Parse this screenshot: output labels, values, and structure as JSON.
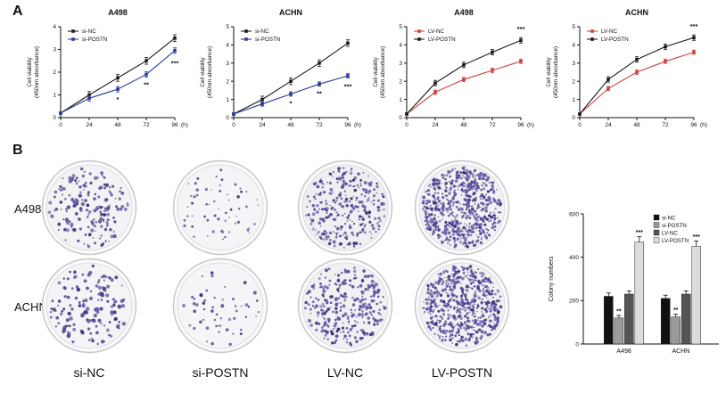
{
  "figure": {
    "panel_a": "A",
    "panel_b": "B"
  },
  "colony": {
    "row_labels": [
      "A498",
      "ACHN"
    ],
    "col_labels": [
      "si-NC",
      "si-POSTN",
      "LV-NC",
      "LV-POSTN"
    ],
    "dot_colors": [
      "#4a3c8e",
      "#5b4da0",
      "#3a2f78",
      "#6c5fae"
    ],
    "dishes": [
      {
        "row": "A498",
        "col": "si-NC",
        "dot_count": 175,
        "dot_size": [
          0.9,
          2.2
        ],
        "bg": "#f3f2f4",
        "seed": 11
      },
      {
        "row": "A498",
        "col": "si-POSTN",
        "dot_count": 60,
        "dot_size": [
          0.7,
          1.8
        ],
        "bg": "#f5f4f6",
        "seed": 22
      },
      {
        "row": "A498",
        "col": "LV-NC",
        "dot_count": 300,
        "dot_size": [
          0.7,
          1.9
        ],
        "bg": "#efeef1",
        "seed": 33
      },
      {
        "row": "A498",
        "col": "LV-POSTN",
        "dot_count": 650,
        "dot_size": [
          0.7,
          1.9
        ],
        "bg": "#f2f1f3",
        "seed": 44
      },
      {
        "row": "ACHN",
        "col": "si-NC",
        "dot_count": 150,
        "dot_size": [
          1.0,
          2.4
        ],
        "bg": "#f4f3f5",
        "seed": 55
      },
      {
        "row": "ACHN",
        "col": "si-POSTN",
        "dot_count": 55,
        "dot_size": [
          0.8,
          2.0
        ],
        "bg": "#f5f4f6",
        "seed": 66
      },
      {
        "row": "ACHN",
        "col": "LV-NC",
        "dot_count": 285,
        "dot_size": [
          0.8,
          2.0
        ],
        "bg": "#f1f0f3",
        "seed": 77
      },
      {
        "row": "ACHN",
        "col": "LV-POSTN",
        "dot_count": 600,
        "dot_size": [
          0.7,
          1.9
        ],
        "bg": "#f2f1f3",
        "seed": 88
      }
    ]
  },
  "chart_data": [
    {
      "type": "line",
      "title": "A498",
      "xlabel": "(h)",
      "ylabel_lines": [
        "Cell viability",
        "(450nm absorbance)"
      ],
      "x": [
        0,
        24,
        48,
        72,
        96
      ],
      "ylim": [
        0,
        4
      ],
      "yticks": [
        0,
        1,
        2,
        3,
        4
      ],
      "series": [
        {
          "name": "si-NC",
          "color": "#1a1a1a",
          "values": [
            0.2,
            1.0,
            1.75,
            2.5,
            3.5
          ],
          "err": 0.15
        },
        {
          "name": "si-POSTN",
          "color": "#2d3aa0",
          "values": [
            0.2,
            0.85,
            1.25,
            1.9,
            2.95
          ],
          "err": 0.12
        }
      ],
      "annotations": [
        {
          "x": 48,
          "y": 0.7,
          "label": "*"
        },
        {
          "x": 72,
          "y": 1.35,
          "label": "**"
        },
        {
          "x": 96,
          "y": 2.3,
          "label": "***"
        }
      ]
    },
    {
      "type": "line",
      "title": "ACHN",
      "xlabel": "(h)",
      "ylabel_lines": [
        "Cell viability",
        "(450nm absorbance)"
      ],
      "x": [
        0,
        24,
        48,
        72,
        96
      ],
      "ylim": [
        0,
        5
      ],
      "yticks": [
        0,
        1,
        2,
        3,
        4,
        5
      ],
      "series": [
        {
          "name": "si-NC",
          "color": "#1a1a1a",
          "values": [
            0.2,
            1.0,
            2.0,
            3.0,
            4.1
          ],
          "err": 0.18
        },
        {
          "name": "si-POSTN",
          "color": "#2d3aa0",
          "values": [
            0.2,
            0.75,
            1.3,
            1.85,
            2.3
          ],
          "err": 0.12
        }
      ],
      "annotations": [
        {
          "x": 48,
          "y": 0.65,
          "label": "*"
        },
        {
          "x": 72,
          "y": 1.2,
          "label": "**"
        },
        {
          "x": 96,
          "y": 1.6,
          "label": "***"
        }
      ]
    },
    {
      "type": "line",
      "title": "A498",
      "xlabel": "(h)",
      "ylabel_lines": [
        "Cell viability",
        "(450nm absorbance)"
      ],
      "x": [
        0,
        24,
        48,
        72,
        96
      ],
      "ylim": [
        0,
        5
      ],
      "yticks": [
        0,
        1,
        2,
        3,
        4,
        5
      ],
      "series": [
        {
          "name": "LV-NC",
          "color": "#d23f3f",
          "values": [
            0.2,
            1.4,
            2.1,
            2.6,
            3.1
          ],
          "err": 0.12
        },
        {
          "name": "LV-POSTN",
          "color": "#1a1a1a",
          "values": [
            0.2,
            1.9,
            2.9,
            3.6,
            4.25
          ],
          "err": 0.15
        }
      ],
      "annotations": [
        {
          "x": 96,
          "y": 4.75,
          "label": "***"
        }
      ]
    },
    {
      "type": "line",
      "title": "ACHN",
      "xlabel": "(h)",
      "ylabel_lines": [
        "Cell viability",
        "(450nm absorbance)"
      ],
      "x": [
        0,
        24,
        48,
        72,
        96
      ],
      "ylim": [
        0,
        5
      ],
      "yticks": [
        0,
        1,
        2,
        3,
        4,
        5
      ],
      "series": [
        {
          "name": "LV-NC",
          "color": "#d23f3f",
          "values": [
            0.2,
            1.6,
            2.5,
            3.1,
            3.6
          ],
          "err": 0.12
        },
        {
          "name": "LV-POSTN",
          "color": "#1a1a1a",
          "values": [
            0.2,
            2.1,
            3.2,
            3.9,
            4.4
          ],
          "err": 0.15
        }
      ],
      "annotations": [
        {
          "x": 96,
          "y": 4.9,
          "label": "***"
        }
      ]
    },
    {
      "type": "bar",
      "ylabel": "Colony numbers",
      "categories": [
        "A498",
        "ACHN"
      ],
      "ylim": [
        0,
        600
      ],
      "yticks": [
        0,
        200,
        400,
        600
      ],
      "series": [
        {
          "name": "si-NC",
          "color": "#111111",
          "values": [
            220,
            210
          ],
          "err": [
            15,
            15
          ]
        },
        {
          "name": "si-POSTN",
          "color": "#9a9a9a",
          "values": [
            120,
            125
          ],
          "err": [
            12,
            12
          ]
        },
        {
          "name": "LV-NC",
          "color": "#555555",
          "values": [
            230,
            230
          ],
          "err": [
            15,
            15
          ]
        },
        {
          "name": "LV-POSTN",
          "color": "#dcdcdc",
          "values": [
            470,
            450
          ],
          "err": [
            25,
            25
          ]
        }
      ],
      "annotations": [
        {
          "cat": "A498",
          "series": "si-POSTN",
          "label": "**"
        },
        {
          "cat": "A498",
          "series": "LV-POSTN",
          "label": "***"
        },
        {
          "cat": "ACHN",
          "series": "si-POSTN",
          "label": "**"
        },
        {
          "cat": "ACHN",
          "series": "LV-POSTN",
          "label": "***"
        }
      ]
    }
  ]
}
